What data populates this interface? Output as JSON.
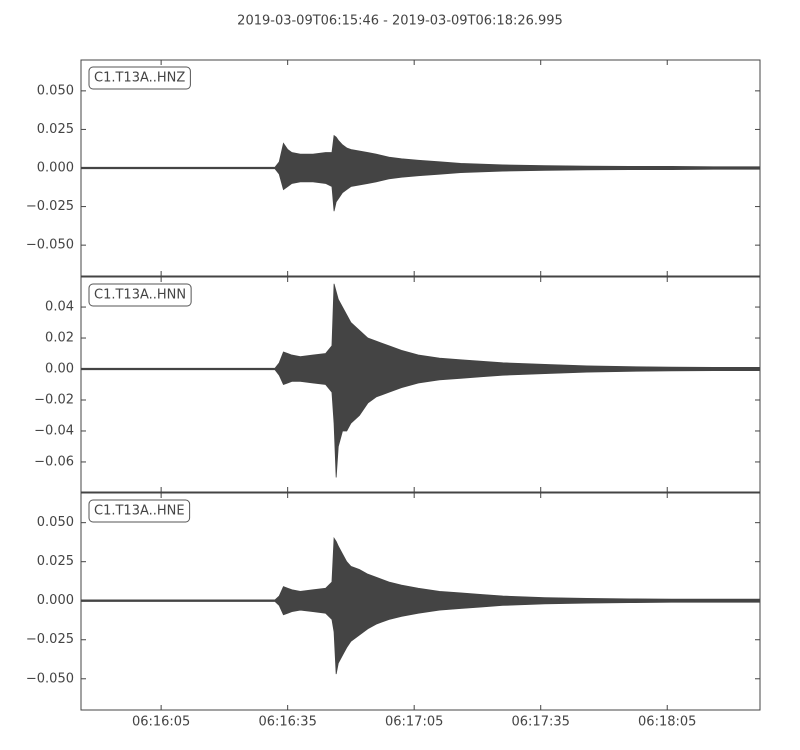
{
  "title": "2019-03-09T06:15:46  -  2019-03-09T06:18:26.995",
  "chart_data": [
    {
      "type": "area",
      "label": "C1.T13A..HNZ",
      "x": [
        0,
        46,
        47,
        48,
        49,
        50,
        52,
        55,
        58,
        59.5,
        60,
        60.5,
        61,
        62,
        63,
        64,
        66,
        68,
        70,
        73,
        76,
        80,
        85,
        90,
        95,
        100,
        110,
        120,
        130,
        140,
        150,
        160.995
      ],
      "xlim": [
        0,
        160.995
      ],
      "ylim": [
        -0.07,
        0.07
      ],
      "yticks": [
        {
          "value": 0.05,
          "label": "0.050"
        },
        0.025,
        {
          "value": 0,
          "label": "0.000"
        },
        {
          "value": -0.025,
          "label": "−0.025"
        },
        {
          "value": -0.05,
          "label": "−0.050"
        }
      ],
      "series": [
        {
          "color": "#444444",
          "values": [
            0.0005,
            0.0005,
            0.004,
            0.016,
            0.012,
            0.01,
            0.009,
            0.009,
            0.01,
            0.01,
            0.021,
            0.02,
            0.018,
            0.015,
            0.013,
            0.012,
            0.011,
            0.01,
            0.009,
            0.007,
            0.006,
            0.005,
            0.004,
            0.003,
            0.0025,
            0.002,
            0.0015,
            0.0012,
            0.001,
            0.001,
            0.0008,
            0.0008
          ]
        },
        {
          "color": "#444444",
          "values": [
            -0.0005,
            -0.0005,
            -0.004,
            -0.014,
            -0.012,
            -0.01,
            -0.009,
            -0.009,
            -0.01,
            -0.012,
            -0.028,
            -0.022,
            -0.02,
            -0.016,
            -0.014,
            -0.012,
            -0.011,
            -0.01,
            -0.009,
            -0.007,
            -0.006,
            -0.005,
            -0.004,
            -0.003,
            -0.0025,
            -0.002,
            -0.0015,
            -0.0012,
            -0.001,
            -0.001,
            -0.0008,
            -0.0008
          ]
        }
      ]
    },
    {
      "type": "area",
      "label": "C1.T13A..HNN",
      "x": [
        0,
        46,
        47,
        48,
        49,
        50,
        52,
        55,
        58,
        59.5,
        60,
        60.5,
        61,
        62,
        63,
        64,
        66,
        68,
        70,
        73,
        76,
        80,
        85,
        90,
        95,
        100,
        110,
        120,
        130,
        140,
        150,
        160.995
      ],
      "xlim": [
        0,
        160.995
      ],
      "ylim": [
        -0.0794,
        0.0594
      ],
      "yticks": [
        0.04,
        0.02,
        {
          "value": 0,
          "label": "0.00"
        },
        {
          "value": -0.02,
          "label": "−0.02"
        },
        {
          "value": -0.04,
          "label": "−0.04"
        },
        {
          "value": -0.06,
          "label": "−0.06"
        }
      ],
      "series": [
        {
          "color": "#444444",
          "values": [
            0.0005,
            0.0005,
            0.004,
            0.011,
            0.01,
            0.009,
            0.008,
            0.009,
            0.01,
            0.015,
            0.055,
            0.05,
            0.045,
            0.04,
            0.035,
            0.03,
            0.025,
            0.02,
            0.018,
            0.015,
            0.012,
            0.009,
            0.007,
            0.006,
            0.005,
            0.004,
            0.003,
            0.002,
            0.0015,
            0.0012,
            0.001,
            0.001
          ]
        },
        {
          "color": "#444444",
          "values": [
            -0.0005,
            -0.0005,
            -0.004,
            -0.01,
            -0.009,
            -0.008,
            -0.008,
            -0.009,
            -0.01,
            -0.015,
            -0.035,
            -0.07,
            -0.05,
            -0.04,
            -0.04,
            -0.035,
            -0.03,
            -0.022,
            -0.018,
            -0.015,
            -0.012,
            -0.009,
            -0.007,
            -0.006,
            -0.005,
            -0.004,
            -0.003,
            -0.002,
            -0.0015,
            -0.0012,
            -0.001,
            -0.001
          ]
        }
      ]
    },
    {
      "type": "area",
      "label": "C1.T13A..HNE",
      "x": [
        0,
        46,
        47,
        48,
        49,
        50,
        52,
        55,
        58,
        59.5,
        60,
        60.5,
        61,
        62,
        63,
        64,
        66,
        68,
        70,
        73,
        76,
        80,
        85,
        90,
        95,
        100,
        110,
        120,
        130,
        140,
        150,
        160.995
      ],
      "xlim": [
        0,
        160.995
      ],
      "ylim": [
        -0.07,
        0.069
      ],
      "yticks": [
        {
          "value": 0.05,
          "label": "0.050"
        },
        0.025,
        {
          "value": 0,
          "label": "0.000"
        },
        {
          "value": -0.025,
          "label": "−0.025"
        },
        {
          "value": -0.05,
          "label": "−0.050"
        }
      ],
      "xticks": [
        {
          "value": 19,
          "label": "06:16:05"
        },
        {
          "value": 49,
          "label": "06:16:35"
        },
        {
          "value": 79,
          "label": "06:17:05"
        },
        {
          "value": 109,
          "label": "06:17:35"
        },
        {
          "value": 139,
          "label": "06:18:05"
        }
      ],
      "series": [
        {
          "color": "#444444",
          "values": [
            0.0005,
            0.0005,
            0.003,
            0.009,
            0.008,
            0.007,
            0.006,
            0.007,
            0.008,
            0.012,
            0.04,
            0.038,
            0.035,
            0.03,
            0.025,
            0.022,
            0.02,
            0.017,
            0.015,
            0.012,
            0.01,
            0.008,
            0.006,
            0.005,
            0.004,
            0.003,
            0.002,
            0.0015,
            0.0012,
            0.001,
            0.001,
            0.001
          ]
        },
        {
          "color": "#444444",
          "values": [
            -0.0005,
            -0.0005,
            -0.003,
            -0.009,
            -0.008,
            -0.007,
            -0.006,
            -0.007,
            -0.008,
            -0.012,
            -0.02,
            -0.047,
            -0.04,
            -0.035,
            -0.03,
            -0.026,
            -0.022,
            -0.018,
            -0.015,
            -0.012,
            -0.01,
            -0.008,
            -0.006,
            -0.005,
            -0.004,
            -0.003,
            -0.002,
            -0.0015,
            -0.0012,
            -0.001,
            -0.001,
            -0.001
          ]
        }
      ]
    }
  ]
}
